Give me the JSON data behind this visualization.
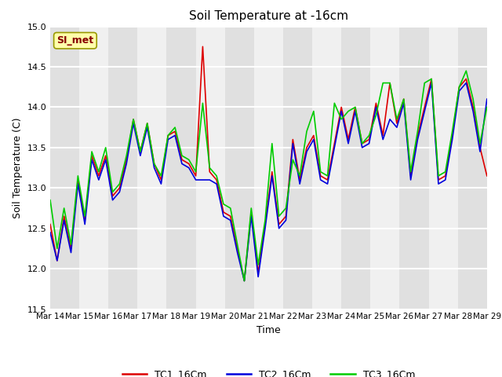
{
  "title": "Soil Temperature at -16cm",
  "xlabel": "Time",
  "ylabel": "Soil Temperature (C)",
  "ylim": [
    11.5,
    15.0
  ],
  "yticks": [
    11.5,
    12.0,
    12.5,
    13.0,
    13.5,
    14.0,
    14.5,
    15.0
  ],
  "line_colors": [
    "#dd0000",
    "#0000dd",
    "#00cc00"
  ],
  "line_labels": [
    "TC1_16Cm",
    "TC2_16Cm",
    "TC3_16Cm"
  ],
  "watermark_text": "SI_met",
  "watermark_bg": "#ffffaa",
  "watermark_fg": "#880000",
  "bg_color": "#ffffff",
  "band_color_dark": "#e0e0e0",
  "band_color_light": "#f0f0f0",
  "grid_color": "#ffffff",
  "n_days": 16,
  "x_labels": [
    "Mar 14",
    "Mar 15",
    "Mar 16",
    "Mar 17",
    "Mar 18",
    "Mar 19",
    "Mar 20",
    "Mar 21",
    "Mar 22",
    "Mar 23",
    "Mar 24",
    "Mar 25",
    "Mar 26",
    "Mar 27",
    "Mar 28",
    "Mar 29"
  ],
  "TC1_16Cm": [
    12.55,
    12.1,
    12.65,
    12.25,
    13.1,
    12.6,
    13.4,
    13.15,
    13.4,
    12.9,
    13.0,
    13.35,
    13.85,
    13.45,
    13.8,
    13.3,
    13.1,
    13.65,
    13.7,
    13.35,
    13.3,
    13.15,
    14.75,
    13.2,
    13.1,
    12.7,
    12.65,
    12.25,
    11.85,
    12.7,
    11.95,
    12.55,
    13.2,
    12.55,
    12.65,
    13.6,
    13.1,
    13.5,
    13.65,
    13.15,
    13.1,
    13.55,
    14.0,
    13.6,
    14.0,
    13.55,
    13.6,
    14.05,
    13.65,
    14.3,
    13.8,
    14.1,
    13.15,
    13.65,
    14.0,
    14.35,
    13.1,
    13.15,
    13.65,
    14.25,
    14.35,
    14.0,
    13.5,
    13.15
  ],
  "TC2_16Cm": [
    12.45,
    12.1,
    12.6,
    12.2,
    13.05,
    12.55,
    13.35,
    13.1,
    13.35,
    12.85,
    12.95,
    13.3,
    13.8,
    13.4,
    13.75,
    13.25,
    13.05,
    13.6,
    13.65,
    13.3,
    13.25,
    13.1,
    13.1,
    13.1,
    13.05,
    12.65,
    12.6,
    12.2,
    11.85,
    12.65,
    11.9,
    12.5,
    13.15,
    12.5,
    12.6,
    13.55,
    13.05,
    13.45,
    13.6,
    13.1,
    13.05,
    13.5,
    13.95,
    13.55,
    13.95,
    13.5,
    13.55,
    14.0,
    13.6,
    13.85,
    13.75,
    14.05,
    13.1,
    13.6,
    13.95,
    14.3,
    13.05,
    13.1,
    13.6,
    14.2,
    14.3,
    13.95,
    13.45,
    14.1
  ],
  "TC3_16Cm": [
    12.85,
    12.25,
    12.75,
    12.3,
    13.15,
    12.65,
    13.45,
    13.2,
    13.5,
    12.95,
    13.05,
    13.4,
    13.85,
    13.45,
    13.8,
    13.3,
    13.15,
    13.65,
    13.75,
    13.4,
    13.35,
    13.2,
    14.05,
    13.25,
    13.15,
    12.8,
    12.75,
    12.3,
    11.85,
    12.75,
    12.05,
    12.6,
    13.55,
    12.65,
    12.75,
    13.35,
    13.15,
    13.7,
    13.95,
    13.2,
    13.15,
    14.05,
    13.85,
    13.95,
    14.0,
    13.55,
    13.65,
    13.9,
    14.3,
    14.3,
    13.85,
    14.1,
    13.2,
    13.7,
    14.3,
    14.35,
    13.15,
    13.2,
    13.7,
    14.25,
    14.45,
    14.1,
    13.55,
    14.0
  ]
}
